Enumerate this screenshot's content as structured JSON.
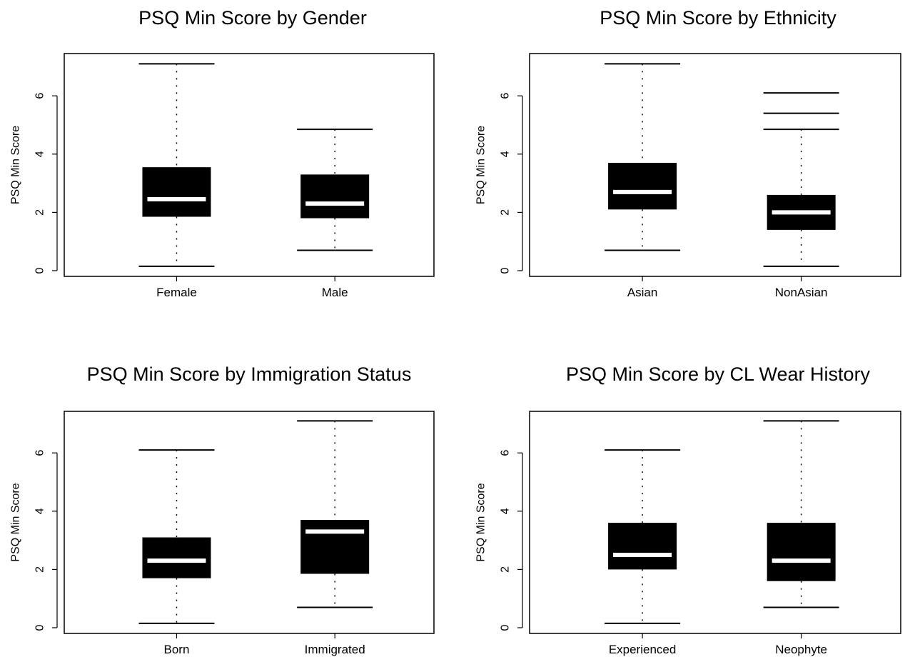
{
  "chart_data": [
    {
      "type": "boxplot",
      "title": "PSQ Min Score by Gender",
      "ylabel": "PSQ Min Score",
      "xlabel": "",
      "ylim": [
        0,
        7.2
      ],
      "yticks": [
        0,
        2,
        4,
        6
      ],
      "categories": [
        "Female",
        "Male"
      ],
      "boxes": [
        {
          "min": 0.15,
          "q1": 1.85,
          "median": 2.45,
          "q3": 3.55,
          "max": 7.1,
          "outliers": []
        },
        {
          "min": 0.7,
          "q1": 1.8,
          "median": 2.3,
          "q3": 3.3,
          "max": 4.85,
          "outliers": []
        }
      ]
    },
    {
      "type": "boxplot",
      "title": "PSQ Min Score by Ethnicity",
      "ylabel": "PSQ Min Score",
      "xlabel": "",
      "ylim": [
        0,
        7.2
      ],
      "yticks": [
        0,
        2,
        4,
        6
      ],
      "categories": [
        "Asian",
        "NonAsian"
      ],
      "boxes": [
        {
          "min": 0.7,
          "q1": 2.1,
          "median": 2.7,
          "q3": 3.7,
          "max": 7.1,
          "outliers": []
        },
        {
          "min": 0.15,
          "q1": 1.4,
          "median": 2.0,
          "q3": 2.6,
          "max": 4.85,
          "outliers": [
            5.4,
            6.1
          ]
        }
      ]
    },
    {
      "type": "boxplot",
      "title": "PSQ Min Score by Immigration Status",
      "ylabel": "PSQ Min Score",
      "xlabel": "",
      "ylim": [
        0,
        7.2
      ],
      "yticks": [
        0,
        2,
        4,
        6
      ],
      "categories": [
        "Born",
        "Immigrated"
      ],
      "boxes": [
        {
          "min": 0.15,
          "q1": 1.7,
          "median": 2.3,
          "q3": 3.1,
          "max": 6.1,
          "outliers": []
        },
        {
          "min": 0.7,
          "q1": 1.85,
          "median": 3.3,
          "q3": 3.7,
          "max": 7.1,
          "outliers": []
        }
      ]
    },
    {
      "type": "boxplot",
      "title": "PSQ Min Score by CL Wear History",
      "ylabel": "PSQ Min Score",
      "xlabel": "",
      "ylim": [
        0,
        7.2
      ],
      "yticks": [
        0,
        2,
        4,
        6
      ],
      "categories": [
        "Experienced",
        "Neophyte"
      ],
      "boxes": [
        {
          "min": 0.15,
          "q1": 2.0,
          "median": 2.5,
          "q3": 3.6,
          "max": 6.1,
          "outliers": []
        },
        {
          "min": 0.7,
          "q1": 1.6,
          "median": 2.3,
          "q3": 3.6,
          "max": 7.1,
          "outliers": []
        }
      ]
    }
  ]
}
